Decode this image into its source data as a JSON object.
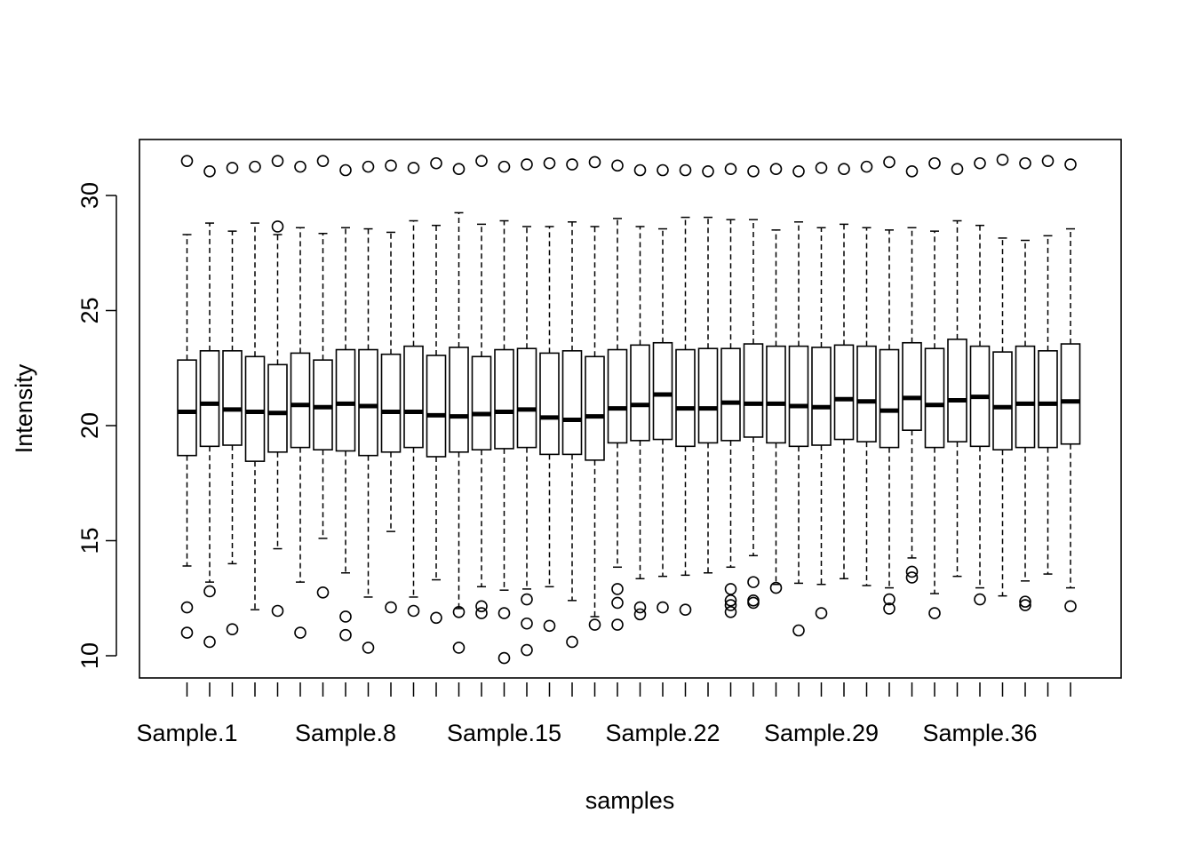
{
  "chart_data": {
    "type": "boxplot",
    "xlabel": "samples",
    "ylabel": "Intensity",
    "ylim": [
      9.5,
      32.3
    ],
    "y_ticks": [
      10,
      15,
      20,
      25,
      30
    ],
    "x_tick_labels_shown": [
      "Sample.1",
      "Sample.8",
      "Sample.15",
      "Sample.22",
      "Sample.29",
      "Sample.36"
    ],
    "x_tick_label_every": 7,
    "grid": false,
    "legend": "none",
    "boxes": [
      {
        "median": 20.6,
        "q1": 18.7,
        "q3": 22.85,
        "whisker_low": 13.9,
        "whisker_high": 28.3,
        "outliers": [
          31.5,
          12.1,
          11.0
        ]
      },
      {
        "median": 20.95,
        "q1": 19.1,
        "q3": 23.25,
        "whisker_low": 13.2,
        "whisker_high": 28.8,
        "outliers": [
          31.05,
          12.8,
          10.6
        ]
      },
      {
        "median": 20.7,
        "q1": 19.15,
        "q3": 23.25,
        "whisker_low": 14.0,
        "whisker_high": 28.45,
        "outliers": [
          31.2,
          11.15
        ]
      },
      {
        "median": 20.6,
        "q1": 18.45,
        "q3": 23.0,
        "whisker_low": 12.0,
        "whisker_high": 28.8,
        "outliers": [
          31.25
        ]
      },
      {
        "median": 20.55,
        "q1": 18.85,
        "q3": 22.65,
        "whisker_low": 14.65,
        "whisker_high": 28.3,
        "outliers": [
          31.5,
          28.65,
          11.95
        ]
      },
      {
        "median": 20.9,
        "q1": 19.05,
        "q3": 23.15,
        "whisker_low": 13.2,
        "whisker_high": 28.6,
        "outliers": [
          31.25,
          11.0
        ]
      },
      {
        "median": 20.8,
        "q1": 18.95,
        "q3": 22.85,
        "whisker_low": 15.1,
        "whisker_high": 28.35,
        "outliers": [
          31.5,
          12.75
        ]
      },
      {
        "median": 20.95,
        "q1": 18.9,
        "q3": 23.3,
        "whisker_low": 13.6,
        "whisker_high": 28.6,
        "outliers": [
          31.1,
          11.7,
          10.9
        ]
      },
      {
        "median": 20.85,
        "q1": 18.7,
        "q3": 23.3,
        "whisker_low": 12.55,
        "whisker_high": 28.55,
        "outliers": [
          31.25,
          10.35
        ]
      },
      {
        "median": 20.6,
        "q1": 18.85,
        "q3": 23.1,
        "whisker_low": 15.4,
        "whisker_high": 28.4,
        "outliers": [
          31.3,
          12.1
        ]
      },
      {
        "median": 20.6,
        "q1": 19.05,
        "q3": 23.45,
        "whisker_low": 12.55,
        "whisker_high": 28.9,
        "outliers": [
          31.2,
          11.95
        ]
      },
      {
        "median": 20.45,
        "q1": 18.65,
        "q3": 23.05,
        "whisker_low": 13.3,
        "whisker_high": 28.7,
        "outliers": [
          31.4,
          11.65
        ]
      },
      {
        "median": 20.4,
        "q1": 18.85,
        "q3": 23.4,
        "whisker_low": 12.05,
        "whisker_high": 29.25,
        "outliers": [
          31.15,
          11.9,
          10.35
        ]
      },
      {
        "median": 20.5,
        "q1": 18.95,
        "q3": 23.0,
        "whisker_low": 13.0,
        "whisker_high": 28.75,
        "outliers": [
          31.5,
          12.15,
          11.85
        ]
      },
      {
        "median": 20.6,
        "q1": 19.0,
        "q3": 23.3,
        "whisker_low": 12.85,
        "whisker_high": 28.9,
        "outliers": [
          31.25,
          11.85,
          9.9
        ]
      },
      {
        "median": 20.7,
        "q1": 19.05,
        "q3": 23.35,
        "whisker_low": 12.9,
        "whisker_high": 28.65,
        "outliers": [
          31.35,
          12.45,
          11.4,
          10.25
        ]
      },
      {
        "median": 20.35,
        "q1": 18.75,
        "q3": 23.15,
        "whisker_low": 13.0,
        "whisker_high": 28.65,
        "outliers": [
          31.4,
          11.3
        ]
      },
      {
        "median": 20.25,
        "q1": 18.75,
        "q3": 23.25,
        "whisker_low": 12.4,
        "whisker_high": 28.85,
        "outliers": [
          31.35,
          10.6
        ]
      },
      {
        "median": 20.4,
        "q1": 18.5,
        "q3": 23.0,
        "whisker_low": 11.7,
        "whisker_high": 28.65,
        "outliers": [
          31.45,
          11.35
        ]
      },
      {
        "median": 20.75,
        "q1": 19.25,
        "q3": 23.3,
        "whisker_low": 13.85,
        "whisker_high": 29.0,
        "outliers": [
          31.3,
          12.9,
          12.3,
          11.35
        ]
      },
      {
        "median": 20.9,
        "q1": 19.35,
        "q3": 23.5,
        "whisker_low": 13.35,
        "whisker_high": 28.65,
        "outliers": [
          31.1,
          12.1,
          11.8
        ]
      },
      {
        "median": 21.35,
        "q1": 19.4,
        "q3": 23.6,
        "whisker_low": 13.45,
        "whisker_high": 28.55,
        "outliers": [
          31.1,
          12.1
        ]
      },
      {
        "median": 20.75,
        "q1": 19.1,
        "q3": 23.3,
        "whisker_low": 13.5,
        "whisker_high": 29.05,
        "outliers": [
          31.1,
          12.0
        ]
      },
      {
        "median": 20.75,
        "q1": 19.25,
        "q3": 23.35,
        "whisker_low": 13.6,
        "whisker_high": 29.05,
        "outliers": [
          31.05
        ]
      },
      {
        "median": 21.0,
        "q1": 19.35,
        "q3": 23.35,
        "whisker_low": 13.85,
        "whisker_high": 28.95,
        "outliers": [
          31.15,
          12.9,
          12.4,
          12.2,
          11.9
        ]
      },
      {
        "median": 20.95,
        "q1": 19.5,
        "q3": 23.55,
        "whisker_low": 14.35,
        "whisker_high": 28.95,
        "outliers": [
          31.05,
          13.2,
          12.4,
          12.3
        ]
      },
      {
        "median": 20.95,
        "q1": 19.25,
        "q3": 23.45,
        "whisker_low": 13.1,
        "whisker_high": 28.5,
        "outliers": [
          31.15,
          12.95
        ]
      },
      {
        "median": 20.85,
        "q1": 19.1,
        "q3": 23.45,
        "whisker_low": 13.15,
        "whisker_high": 28.85,
        "outliers": [
          31.05,
          11.1
        ]
      },
      {
        "median": 20.8,
        "q1": 19.15,
        "q3": 23.4,
        "whisker_low": 13.1,
        "whisker_high": 28.6,
        "outliers": [
          31.2,
          11.85
        ]
      },
      {
        "median": 21.15,
        "q1": 19.4,
        "q3": 23.5,
        "whisker_low": 13.35,
        "whisker_high": 28.75,
        "outliers": [
          31.15
        ]
      },
      {
        "median": 21.05,
        "q1": 19.3,
        "q3": 23.45,
        "whisker_low": 13.05,
        "whisker_high": 28.6,
        "outliers": [
          31.25
        ]
      },
      {
        "median": 20.65,
        "q1": 19.05,
        "q3": 23.3,
        "whisker_low": 12.95,
        "whisker_high": 28.5,
        "outliers": [
          31.45,
          12.45,
          12.05
        ]
      },
      {
        "median": 21.2,
        "q1": 19.8,
        "q3": 23.6,
        "whisker_low": 14.25,
        "whisker_high": 28.6,
        "outliers": [
          31.05,
          13.65,
          13.4
        ]
      },
      {
        "median": 20.9,
        "q1": 19.05,
        "q3": 23.35,
        "whisker_low": 12.7,
        "whisker_high": 28.45,
        "outliers": [
          31.4,
          11.85
        ]
      },
      {
        "median": 21.1,
        "q1": 19.3,
        "q3": 23.75,
        "whisker_low": 13.45,
        "whisker_high": 28.9,
        "outliers": [
          31.15
        ]
      },
      {
        "median": 21.25,
        "q1": 19.1,
        "q3": 23.45,
        "whisker_low": 12.95,
        "whisker_high": 28.7,
        "outliers": [
          31.4,
          12.45
        ]
      },
      {
        "median": 20.8,
        "q1": 18.95,
        "q3": 23.2,
        "whisker_low": 12.6,
        "whisker_high": 28.15,
        "outliers": [
          31.55
        ]
      },
      {
        "median": 20.95,
        "q1": 19.05,
        "q3": 23.45,
        "whisker_low": 13.25,
        "whisker_high": 28.05,
        "outliers": [
          31.4,
          12.35,
          12.2
        ]
      },
      {
        "median": 20.95,
        "q1": 19.05,
        "q3": 23.25,
        "whisker_low": 13.55,
        "whisker_high": 28.25,
        "outliers": [
          31.5
        ]
      },
      {
        "median": 21.05,
        "q1": 19.2,
        "q3": 23.55,
        "whisker_low": 12.95,
        "whisker_high": 28.55,
        "outliers": [
          31.35,
          12.15
        ]
      }
    ]
  }
}
